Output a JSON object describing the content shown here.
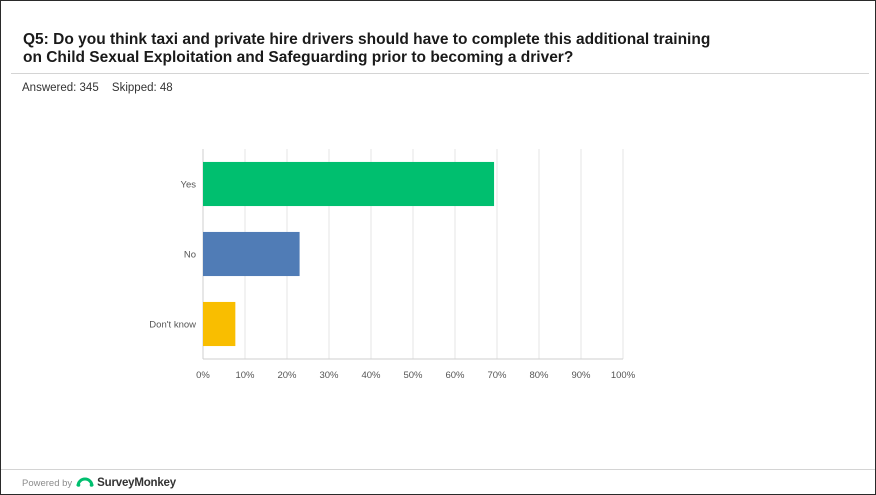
{
  "question": {
    "line1": "Q5: Do you think taxi and private hire drivers should have to complete this additional training",
    "line2": "on Child Sexual Exploitation and Safeguarding prior to becoming a driver?"
  },
  "stats": {
    "answered": "Answered: 345",
    "skipped": "Skipped: 48"
  },
  "chart_data": {
    "type": "bar",
    "orientation": "horizontal",
    "categories": [
      "Yes",
      "No",
      "Don't know"
    ],
    "values": [
      69.3,
      23.0,
      7.7
    ],
    "colors": [
      "#00bf6f",
      "#507cb6",
      "#f9be00"
    ],
    "xlim": [
      0,
      100
    ],
    "xticks": [
      "0%",
      "10%",
      "20%",
      "30%",
      "40%",
      "50%",
      "60%",
      "70%",
      "80%",
      "90%",
      "100%"
    ],
    "grid": true
  },
  "footer": {
    "powered_by": "Powered by",
    "brand": "SurveyMonkey",
    "logo_icon": "surveymonkey-logo-icon"
  }
}
